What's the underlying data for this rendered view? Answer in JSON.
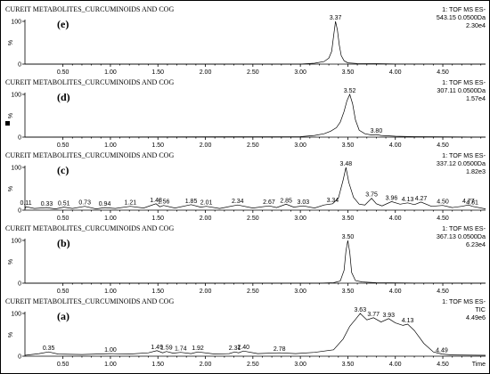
{
  "chart_data": [
    {
      "type": "line",
      "panel": "(e)",
      "title": "CUREIT METABOLITES_CURCUMINOIDS AND COG",
      "detector": [
        "1: TOF MS ES-",
        "543.15 0.0500Da",
        "2.30e4"
      ],
      "ylabel": "%",
      "ytick_labels": [
        "100",
        "0"
      ],
      "ylim": [
        0,
        100
      ],
      "x_ticks": [
        "0.50",
        "1.00",
        "1.50",
        "2.00",
        "2.50",
        "3.00",
        "3.50",
        "4.00",
        "4.50"
      ],
      "xlim": [
        0.1,
        4.95
      ],
      "x": [
        0.1,
        3.0,
        3.15,
        3.25,
        3.3,
        3.33,
        3.35,
        3.37,
        3.39,
        3.41,
        3.43,
        3.46,
        3.5,
        3.6,
        3.8,
        4.0,
        4.95
      ],
      "y": [
        0,
        0,
        2,
        6,
        14,
        30,
        65,
        100,
        80,
        45,
        20,
        8,
        3,
        1.5,
        1,
        0.5,
        0
      ],
      "peak_labels": [
        {
          "x": 3.37,
          "text": "3.37",
          "y": 100
        }
      ]
    },
    {
      "type": "line",
      "panel": "(d)",
      "title": "CUREIT METABOLITES_CURCUMINOIDS AND COG",
      "detector": [
        "1: TOF MS ES-",
        "307.11 0.0500Da",
        "1.57e4"
      ],
      "ylabel": "%",
      "ytick_labels": [
        "100",
        "0"
      ],
      "ylim": [
        0,
        100
      ],
      "x_ticks": [
        "0.50",
        "1.00",
        "1.50",
        "2.00",
        "2.50",
        "3.00",
        "3.50",
        "4.00",
        "4.50"
      ],
      "xlim": [
        0.1,
        4.95
      ],
      "x": [
        0.1,
        3.0,
        3.15,
        3.25,
        3.32,
        3.38,
        3.42,
        3.46,
        3.49,
        3.52,
        3.55,
        3.58,
        3.62,
        3.68,
        3.75,
        3.8,
        3.85,
        4.0,
        4.2,
        4.95
      ],
      "y": [
        0,
        1,
        4,
        8,
        14,
        22,
        35,
        60,
        85,
        100,
        78,
        40,
        16,
        8,
        5,
        6,
        4,
        2,
        1,
        0
      ],
      "peak_labels": [
        {
          "x": 3.52,
          "text": "3.52",
          "y": 100
        },
        {
          "x": 3.8,
          "text": "3.80",
          "y": 6
        }
      ]
    },
    {
      "type": "line",
      "panel": "(c)",
      "title": "CUREIT METABOLITES_CURCUMINOIDS AND COG",
      "detector": [
        "1: TOF MS ES-",
        "337.12 0.0500Da",
        "1.82e3"
      ],
      "ylabel": "%",
      "ytick_labels": [
        "100",
        "0"
      ],
      "ylim": [
        0,
        100
      ],
      "x_ticks": [
        "0.50",
        "1.00",
        "1.50",
        "2.00",
        "2.50",
        "3.00",
        "3.50",
        "4.00",
        "4.50"
      ],
      "xlim": [
        0.1,
        4.95
      ],
      "x": [
        0.1,
        0.11,
        0.2,
        0.33,
        0.42,
        0.51,
        0.6,
        0.73,
        0.85,
        0.94,
        1.05,
        1.21,
        1.35,
        1.48,
        1.52,
        1.56,
        1.68,
        1.85,
        1.95,
        2.01,
        2.15,
        2.34,
        2.5,
        2.67,
        2.75,
        2.85,
        2.93,
        3.03,
        3.15,
        3.25,
        3.34,
        3.4,
        3.45,
        3.48,
        3.51,
        3.56,
        3.62,
        3.68,
        3.75,
        3.8,
        3.86,
        3.96,
        4.05,
        4.13,
        4.2,
        4.27,
        4.38,
        4.5,
        4.6,
        4.7,
        4.77,
        4.81,
        4.95
      ],
      "y": [
        3,
        8,
        4,
        6,
        3,
        7,
        4,
        9,
        3,
        6,
        4,
        9,
        5,
        15,
        8,
        11,
        5,
        13,
        7,
        9,
        4,
        12,
        5,
        10,
        6,
        14,
        7,
        10,
        5,
        12,
        15,
        28,
        70,
        100,
        65,
        30,
        14,
        12,
        28,
        15,
        10,
        20,
        14,
        17,
        13,
        19,
        9,
        11,
        6,
        9,
        12,
        9,
        3
      ],
      "peak_labels": [
        {
          "x": 0.11,
          "text": "0.11",
          "y": 8
        },
        {
          "x": 0.33,
          "text": "0.33",
          "y": 6
        },
        {
          "x": 0.51,
          "text": "0.51",
          "y": 7
        },
        {
          "x": 0.73,
          "text": "0.73",
          "y": 9
        },
        {
          "x": 0.94,
          "text": "0.94",
          "y": 6
        },
        {
          "x": 1.21,
          "text": "1.21",
          "y": 9
        },
        {
          "x": 1.48,
          "text": "1.48",
          "y": 15
        },
        {
          "x": 1.56,
          "text": "1.56",
          "y": 11
        },
        {
          "x": 1.85,
          "text": "1.85",
          "y": 13
        },
        {
          "x": 2.01,
          "text": "2.01",
          "y": 9
        },
        {
          "x": 2.34,
          "text": "2.34",
          "y": 12
        },
        {
          "x": 2.67,
          "text": "2.67",
          "y": 10
        },
        {
          "x": 2.85,
          "text": "2.85",
          "y": 14
        },
        {
          "x": 3.03,
          "text": "3.03",
          "y": 10
        },
        {
          "x": 3.34,
          "text": "3.34",
          "y": 15
        },
        {
          "x": 3.48,
          "text": "3.48",
          "y": 100
        },
        {
          "x": 3.75,
          "text": "3.75",
          "y": 28
        },
        {
          "x": 3.96,
          "text": "3.96",
          "y": 20
        },
        {
          "x": 4.13,
          "text": "4.13",
          "y": 17
        },
        {
          "x": 4.27,
          "text": "4.27",
          "y": 19
        },
        {
          "x": 4.5,
          "text": "4.50",
          "y": 11
        },
        {
          "x": 4.77,
          "text": "4.77",
          "y": 12
        },
        {
          "x": 4.81,
          "text": "4.81",
          "y": 9
        }
      ]
    },
    {
      "type": "line",
      "panel": "(b)",
      "title": "CUREIT METABOLITES_CURCUMINOIDS AND COG",
      "detector": [
        "1: TOF MS ES-",
        "367.13 0.0500Da",
        "6.23e4"
      ],
      "ylabel": "%",
      "ytick_labels": [
        "100",
        "0"
      ],
      "ylim": [
        0,
        100
      ],
      "x_ticks": [
        "0.50",
        "1.00",
        "1.50",
        "2.00",
        "2.50",
        "3.00",
        "3.50",
        "4.00",
        "4.50"
      ],
      "xlim": [
        0.1,
        4.95
      ],
      "x": [
        0.1,
        3.2,
        3.35,
        3.42,
        3.46,
        3.48,
        3.5,
        3.52,
        3.54,
        3.58,
        3.65,
        3.8,
        4.2,
        4.95
      ],
      "y": [
        0,
        0,
        1,
        5,
        30,
        75,
        100,
        72,
        25,
        6,
        3,
        1,
        0.5,
        0
      ],
      "peak_labels": [
        {
          "x": 3.5,
          "text": "3.50",
          "y": 100
        }
      ]
    },
    {
      "type": "line",
      "panel": "(a)",
      "title": "CUREIT METABOLITES_CURCUMINOIDS AND COG",
      "detector": [
        "1: TOF MS ES-",
        "TIC",
        "4.49e6"
      ],
      "ylabel": "%",
      "ytick_labels": [
        "100",
        "0"
      ],
      "ylim": [
        0,
        100
      ],
      "xlabel": "Time",
      "x_ticks": [
        "0.50",
        "1.00",
        "1.50",
        "2.00",
        "2.50",
        "3.00",
        "3.50",
        "4.00",
        "4.50"
      ],
      "xlim": [
        0.1,
        4.95
      ],
      "x": [
        0.1,
        0.25,
        0.35,
        0.45,
        0.7,
        1.0,
        1.2,
        1.4,
        1.49,
        1.55,
        1.59,
        1.66,
        1.74,
        1.85,
        1.92,
        2.1,
        2.25,
        2.31,
        2.35,
        2.4,
        2.55,
        2.78,
        2.95,
        3.15,
        3.35,
        3.45,
        3.52,
        3.58,
        3.63,
        3.7,
        3.77,
        3.85,
        3.93,
        4.0,
        4.08,
        4.13,
        4.2,
        4.3,
        4.4,
        4.49,
        4.6,
        4.95
      ],
      "y": [
        2,
        6,
        10,
        5,
        4,
        6,
        5,
        8,
        13,
        8,
        11,
        7,
        9,
        6,
        10,
        5,
        6,
        10,
        8,
        12,
        6,
        8,
        6,
        9,
        15,
        40,
        70,
        86,
        100,
        85,
        90,
        80,
        88,
        78,
        72,
        75,
        60,
        30,
        10,
        5,
        3,
        2
      ],
      "peak_labels": [
        {
          "x": 0.35,
          "text": "0.35",
          "y": 10
        },
        {
          "x": 1.0,
          "text": "1.00",
          "y": 6
        },
        {
          "x": 1.49,
          "text": "1.49",
          "y": 13
        },
        {
          "x": 1.59,
          "text": "1.59",
          "y": 11
        },
        {
          "x": 1.74,
          "text": "1.74",
          "y": 9
        },
        {
          "x": 1.92,
          "text": "1.92",
          "y": 10
        },
        {
          "x": 2.31,
          "text": "2.31",
          "y": 10
        },
        {
          "x": 2.4,
          "text": "2.40",
          "y": 12
        },
        {
          "x": 2.78,
          "text": "2.78",
          "y": 8
        },
        {
          "x": 3.63,
          "text": "3.63",
          "y": 100
        },
        {
          "x": 3.77,
          "text": "3.77",
          "y": 90
        },
        {
          "x": 3.93,
          "text": "3.93",
          "y": 88
        },
        {
          "x": 4.13,
          "text": "4.13",
          "y": 75
        },
        {
          "x": 4.49,
          "text": "4.49",
          "y": 5
        }
      ]
    }
  ]
}
